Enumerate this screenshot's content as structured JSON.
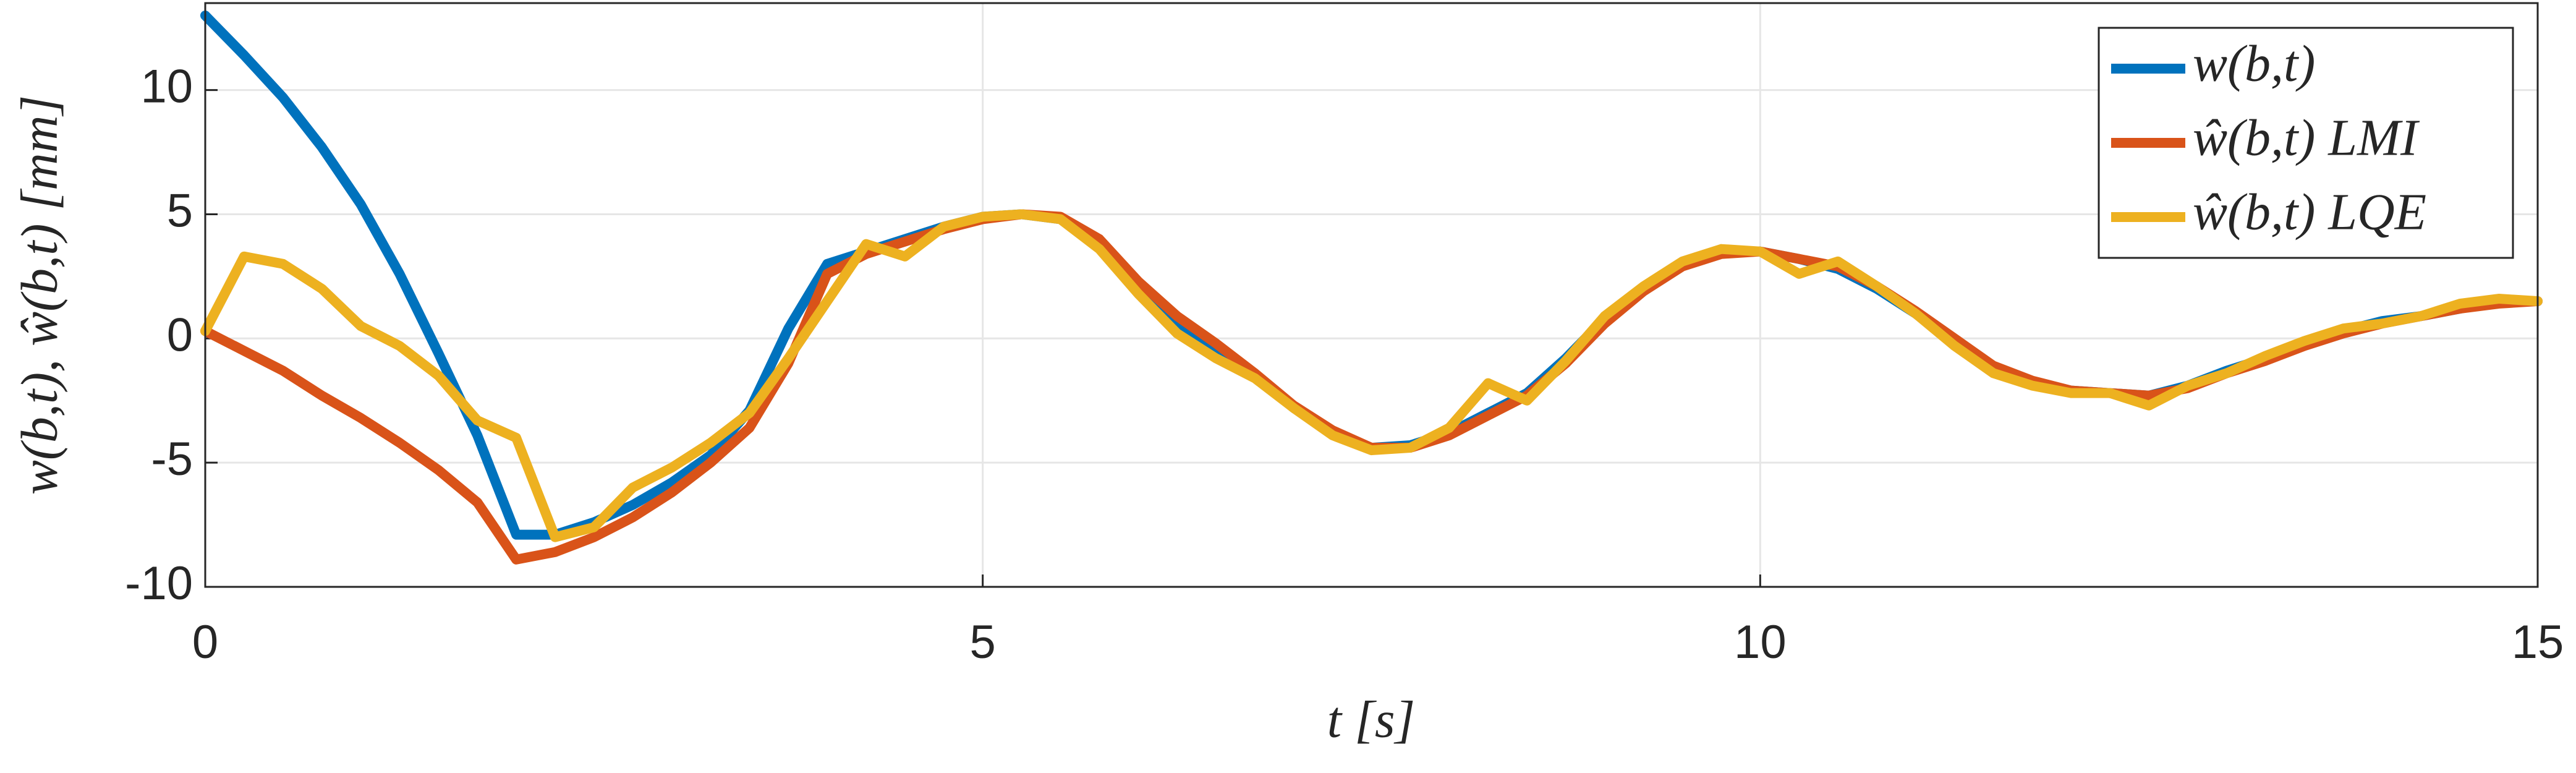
{
  "chart_data": {
    "type": "line",
    "xlabel": "t [s]",
    "ylabel": "w(b,t),  ŵ(b,t) [mm]",
    "x": [
      0,
      0.25,
      0.5,
      0.75,
      1,
      1.25,
      1.5,
      1.75,
      2,
      2.25,
      2.5,
      2.75,
      3,
      3.25,
      3.5,
      3.75,
      4,
      4.25,
      4.5,
      4.75,
      5,
      5.25,
      5.5,
      5.75,
      6,
      6.25,
      6.5,
      6.75,
      7,
      7.25,
      7.5,
      7.75,
      8,
      8.25,
      8.5,
      8.75,
      9,
      9.25,
      9.5,
      9.75,
      10,
      10.25,
      10.5,
      10.75,
      11,
      11.25,
      11.5,
      11.75,
      12,
      12.25,
      12.5,
      12.75,
      13,
      13.25,
      13.5,
      13.75,
      14,
      14.25,
      14.5,
      14.75,
      15
    ],
    "series": [
      {
        "name": "w(b,t)",
        "color": "#0072BD",
        "values": [
          13,
          11.4,
          9.7,
          7.7,
          5.4,
          2.6,
          -0.6,
          -3.9,
          -7.9,
          -7.9,
          -7.4,
          -6.7,
          -5.8,
          -4.7,
          -2.9,
          0.4,
          3.0,
          3.5,
          4.0,
          4.5,
          4.9,
          5.0,
          4.8,
          3.8,
          2.0,
          0.6,
          -0.4,
          -1.5,
          -2.8,
          -3.8,
          -4.4,
          -4.3,
          -3.8,
          -3.0,
          -2.2,
          -0.8,
          0.8,
          2.0,
          3.0,
          3.5,
          3.5,
          3.2,
          2.8,
          2.0,
          1.0,
          -0.2,
          -1.2,
          -1.8,
          -2.1,
          -2.2,
          -2.3,
          -1.9,
          -1.3,
          -0.8,
          -0.2,
          0.3,
          0.7,
          0.9,
          1.2,
          1.5,
          1.5
        ]
      },
      {
        "name": "ŵ(b,t) LMI",
        "color": "#D95319",
        "values": [
          0.3,
          -0.5,
          -1.3,
          -2.3,
          -3.2,
          -4.2,
          -5.3,
          -6.6,
          -8.9,
          -8.6,
          -8.0,
          -7.2,
          -6.2,
          -5.0,
          -3.6,
          -1.0,
          2.6,
          3.4,
          3.9,
          4.4,
          4.8,
          5.0,
          4.9,
          4.0,
          2.3,
          0.9,
          -0.2,
          -1.4,
          -2.7,
          -3.7,
          -4.4,
          -4.4,
          -3.9,
          -3.1,
          -2.3,
          -1.0,
          0.6,
          1.9,
          2.9,
          3.4,
          3.5,
          3.2,
          2.9,
          2.1,
          1.1,
          0,
          -1.1,
          -1.7,
          -2.1,
          -2.2,
          -2.3,
          -2.0,
          -1.4,
          -0.9,
          -0.3,
          0.2,
          0.6,
          0.9,
          1.2,
          1.4,
          1.5
        ]
      },
      {
        "name": "ŵ(b,t) LQE",
        "color": "#EDB120",
        "values": [
          0.3,
          3.3,
          3.0,
          2.0,
          0.5,
          -0.3,
          -1.5,
          -3.3,
          -4.0,
          -8.0,
          -7.6,
          -6.0,
          -5.2,
          -4.2,
          -3.0,
          -0.8,
          1.5,
          3.8,
          3.3,
          4.5,
          4.9,
          5.0,
          4.8,
          3.6,
          1.8,
          0.2,
          -0.8,
          -1.6,
          -2.8,
          -3.9,
          -4.5,
          -4.4,
          -3.6,
          -1.8,
          -2.5,
          -0.9,
          0.9,
          2.1,
          3.1,
          3.6,
          3.5,
          2.6,
          3.1,
          2.1,
          1.0,
          -0.3,
          -1.4,
          -1.9,
          -2.2,
          -2.2,
          -2.7,
          -1.9,
          -1.4,
          -0.7,
          -0.1,
          0.4,
          0.6,
          0.9,
          1.4,
          1.6,
          1.5
        ]
      }
    ],
    "xlim": [
      0,
      15
    ],
    "xticks": [
      0,
      5,
      10,
      15
    ],
    "ylim": [
      -10,
      13.5
    ],
    "yticks": [
      -10,
      -5,
      0,
      5,
      10
    ],
    "grid": true,
    "legend": "northeast"
  }
}
